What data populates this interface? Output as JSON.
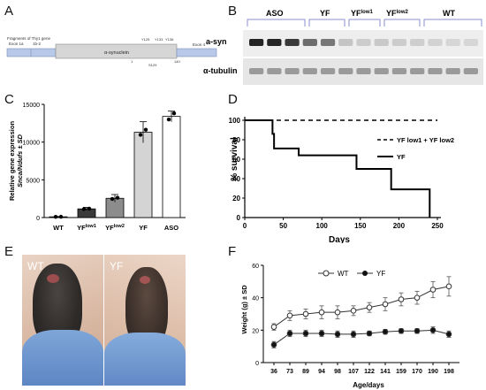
{
  "panels": {
    "A": "A",
    "B": "B",
    "C": "C",
    "D": "D",
    "E": "E",
    "F": "F"
  },
  "panelA": {
    "fragments_label": "Fragments of Thy1 gene",
    "exon_labels": [
      "Exon 1a",
      "1b-2",
      "Exon 4"
    ],
    "insert_label": "α-synuclein",
    "residue_top": [
      "Y125",
      "Y133",
      "Y136"
    ],
    "residue_bottom": [
      "1",
      "S129",
      "140"
    ]
  },
  "panelB": {
    "groups": [
      "ASO",
      "YF",
      "YF",
      "YF",
      "WT"
    ],
    "group_sups": [
      "",
      "",
      "low1",
      "low2",
      ""
    ],
    "rows": [
      "a-syn",
      "α-tubulin"
    ],
    "syn_band_intensity": [
      0.95,
      0.95,
      0.85,
      0.6,
      0.55,
      0.18,
      0.15,
      0.16,
      0.15,
      0.14,
      0.12,
      0.1,
      0.1
    ]
  },
  "panelC": {
    "ylabel_line1": "Relative gene expression",
    "ylabel_line2": "Snca/Ndufs ± SD",
    "yticks": [
      "0",
      "5000",
      "10000",
      "15000"
    ],
    "categories": [
      "WT",
      "YF",
      "YF",
      "YF",
      "ASO"
    ],
    "category_sups": [
      "",
      "low1",
      "low2",
      "",
      ""
    ],
    "bar_colors": [
      "#1a1a1a",
      "#3a3a3a",
      "#8c8c8c",
      "#d4d4d4",
      "#ffffff"
    ]
  },
  "panelD": {
    "ylabel": "% survival",
    "xlabel": "Days",
    "xticks": [
      "0",
      "50",
      "100",
      "150",
      "200",
      "250"
    ],
    "yticks": [
      "0",
      "20",
      "40",
      "60",
      "80",
      "100"
    ],
    "legend": [
      {
        "label": "YF low1 + YF low2",
        "style": "dashed"
      },
      {
        "label": "YF",
        "style": "solid"
      }
    ]
  },
  "panelE": {
    "left_label": "WT",
    "right_label": "YF"
  },
  "panelF": {
    "ylabel": "Weight (g) ± SD",
    "xlabel": "Age/days",
    "xticks": [
      "36",
      "73",
      "89",
      "94",
      "98",
      "107",
      "122",
      "141",
      "159",
      "170",
      "190",
      "198"
    ],
    "yticks": [
      "0",
      "20",
      "40",
      "60"
    ],
    "legend": [
      "WT",
      "YF"
    ]
  },
  "chart_data": [
    {
      "type": "bar",
      "title": "",
      "xlabel": "",
      "ylabel": "Relative gene expression Snca/Ndufs ± SD",
      "categories": [
        "WT",
        "YFlow1",
        "YFlow2",
        "YF",
        "ASO"
      ],
      "values": [
        100,
        1150,
        2550,
        11300,
        13400
      ],
      "error": [
        50,
        200,
        500,
        1400,
        700
      ],
      "ylim": [
        0,
        15000
      ]
    },
    {
      "type": "line",
      "title": "",
      "xlabel": "Days",
      "ylabel": "% survival",
      "xlim": [
        0,
        250
      ],
      "ylim": [
        0,
        100
      ],
      "series": [
        {
          "name": "YF low1 + YF low2",
          "x": [
            0,
            250
          ],
          "y": [
            100,
            100
          ]
        },
        {
          "name": "YF",
          "x": [
            0,
            36,
            38,
            70,
            145,
            190,
            240
          ],
          "y": [
            100,
            86,
            71,
            64,
            50,
            29,
            0
          ]
        }
      ]
    },
    {
      "type": "line",
      "title": "",
      "xlabel": "Age/days",
      "ylabel": "Weight (g) ± SD",
      "categories": [
        "36",
        "73",
        "89",
        "94",
        "98",
        "107",
        "122",
        "141",
        "159",
        "170",
        "190",
        "198"
      ],
      "ylim": [
        0,
        60
      ],
      "series": [
        {
          "name": "WT",
          "values": [
            22,
            29,
            30,
            31,
            31,
            32,
            34,
            36,
            39,
            40,
            45,
            47
          ],
          "error": [
            2,
            3,
            3,
            4,
            4,
            3,
            3,
            4,
            4,
            4,
            5,
            6
          ]
        },
        {
          "name": "YF",
          "values": [
            11,
            18,
            18,
            18,
            17.5,
            17.5,
            18,
            19,
            19.5,
            19.5,
            20,
            17.5
          ],
          "error": [
            2,
            2,
            2,
            2,
            2,
            2,
            1.5,
            1.5,
            1.5,
            1.5,
            2,
            2
          ]
        }
      ]
    }
  ]
}
